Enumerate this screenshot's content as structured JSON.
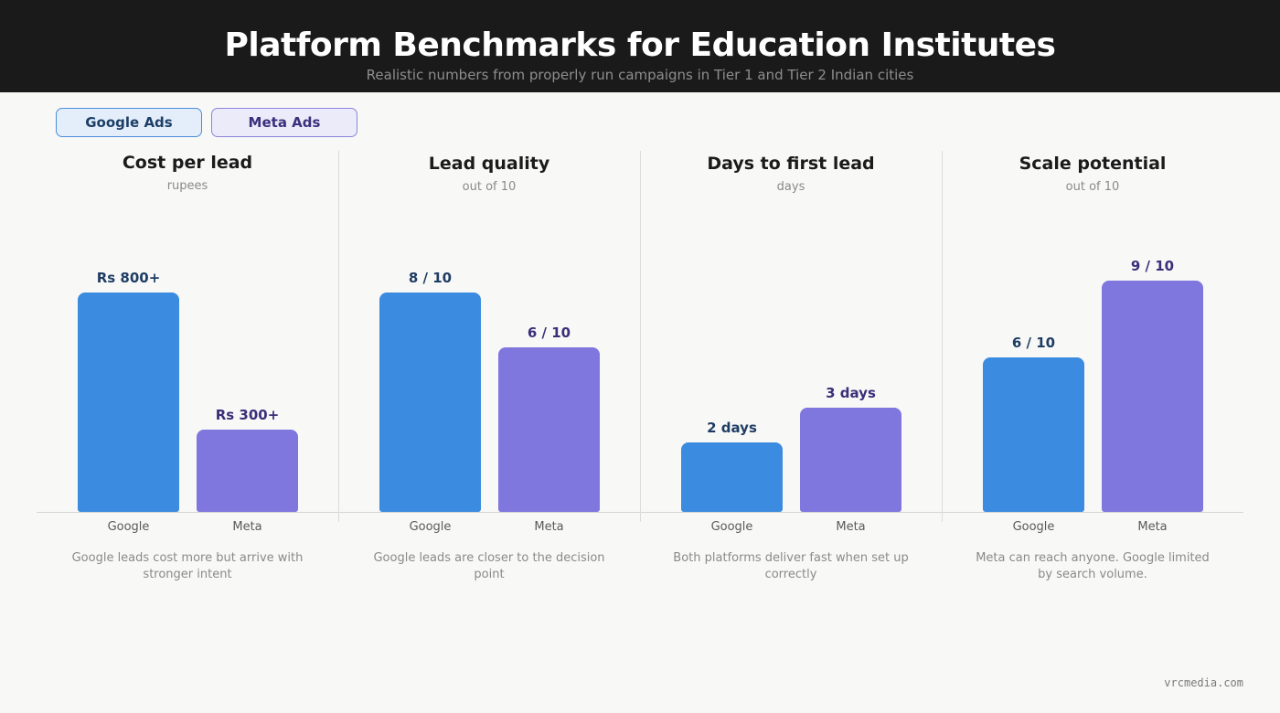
{
  "header": {
    "title": "Platform Benchmarks for Education Institutes",
    "subtitle": "Realistic numbers from properly run campaigns in Tier 1 and Tier 2 Indian cities"
  },
  "legend": [
    {
      "label": "Google Ads",
      "color": "#3b8be0"
    },
    {
      "label": "Meta Ads",
      "color": "#7f76de"
    }
  ],
  "colors": {
    "google": "#3b8be0",
    "meta": "#7f76de",
    "header_bg": "#1a1a1a"
  },
  "chart_data": [
    {
      "type": "bar",
      "title": "Cost per lead",
      "unit": "rupees",
      "categories": [
        "Google",
        "Meta"
      ],
      "values": [
        800,
        300
      ],
      "labels": [
        "Rs 800+",
        "Rs 300+"
      ],
      "ylim": [
        0,
        900
      ],
      "note": "Google leads cost more but arrive with stronger intent"
    },
    {
      "type": "bar",
      "title": "Lead quality",
      "unit": "out of 10",
      "categories": [
        "Google",
        "Meta"
      ],
      "values": [
        8,
        6
      ],
      "labels": [
        "8 / 10",
        "6 / 10"
      ],
      "ylim": [
        0,
        9
      ],
      "note": "Google leads are closer to the decision point"
    },
    {
      "type": "bar",
      "title": "Days to first lead",
      "unit": "days",
      "categories": [
        "Google",
        "Meta"
      ],
      "values": [
        2,
        3
      ],
      "labels": [
        "2 days",
        "3 days"
      ],
      "ylim": [
        0,
        7.1
      ],
      "note": "Both platforms deliver fast when set up correctly"
    },
    {
      "type": "bar",
      "title": "Scale potential",
      "unit": "out of 10",
      "categories": [
        "Google",
        "Meta"
      ],
      "values": [
        6,
        9
      ],
      "labels": [
        "6 / 10",
        "9 / 10"
      ],
      "ylim": [
        0,
        9.6
      ],
      "note": "Meta can reach anyone. Google limited by search volume."
    }
  ],
  "footer": {
    "brand": "vrcmedia.com"
  }
}
